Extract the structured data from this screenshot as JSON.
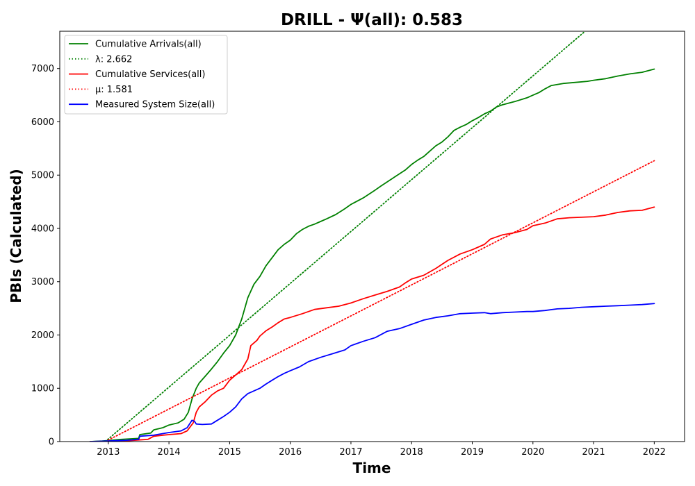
{
  "chart_data": {
    "type": "line",
    "title": "DRILL -  Ψ(all): 0.583",
    "xlabel": "Time",
    "ylabel": "PBIs (Calculated)",
    "xlim": [
      2012.2,
      2022.5
    ],
    "ylim": [
      0,
      7700
    ],
    "x_ticks": [
      2013,
      2014,
      2015,
      2016,
      2017,
      2018,
      2019,
      2020,
      2021,
      2022
    ],
    "y_ticks": [
      0,
      1000,
      2000,
      3000,
      4000,
      5000,
      6000,
      7000
    ],
    "grid": false,
    "legend_position": "top-left",
    "series": [
      {
        "name": "Cumulative Arrivals(all)",
        "color": "#008000",
        "style": "solid",
        "x": [
          2012.7,
          2012.9,
          2013.0,
          2013.2,
          2013.5,
          2013.52,
          2013.7,
          2013.75,
          2013.9,
          2014.0,
          2014.15,
          2014.25,
          2014.32,
          2014.38,
          2014.45,
          2014.5,
          2014.6,
          2014.7,
          2014.8,
          2014.9,
          2015.0,
          2015.1,
          2015.2,
          2015.3,
          2015.4,
          2015.5,
          2015.6,
          2015.7,
          2015.8,
          2015.9,
          2016.0,
          2016.1,
          2016.2,
          2016.3,
          2016.4,
          2016.5,
          2016.6,
          2016.75,
          2016.9,
          2017.0,
          2017.2,
          2017.4,
          2017.5,
          2017.7,
          2017.9,
          2018.0,
          2018.1,
          2018.2,
          2018.3,
          2018.4,
          2018.5,
          2018.6,
          2018.7,
          2018.8,
          2018.9,
          2019.0,
          2019.1,
          2019.2,
          2019.3,
          2019.4,
          2019.5,
          2019.7,
          2019.9,
          2020.0,
          2020.1,
          2020.2,
          2020.3,
          2020.4,
          2020.5,
          2020.7,
          2020.9,
          2021.0,
          2021.2,
          2021.4,
          2021.6,
          2021.8,
          2022.0
        ],
        "values": [
          0,
          10,
          20,
          40,
          60,
          130,
          160,
          220,
          260,
          310,
          350,
          420,
          550,
          800,
          1000,
          1100,
          1230,
          1360,
          1500,
          1660,
          1800,
          2000,
          2300,
          2700,
          2950,
          3100,
          3300,
          3450,
          3600,
          3700,
          3780,
          3900,
          3980,
          4040,
          4080,
          4130,
          4180,
          4260,
          4370,
          4450,
          4570,
          4720,
          4800,
          4950,
          5100,
          5200,
          5280,
          5350,
          5450,
          5550,
          5620,
          5720,
          5840,
          5900,
          5950,
          6020,
          6080,
          6150,
          6200,
          6280,
          6320,
          6380,
          6450,
          6500,
          6550,
          6620,
          6680,
          6700,
          6720,
          6740,
          6760,
          6780,
          6810,
          6860,
          6900,
          6930,
          6990
        ]
      },
      {
        "name": "λ: 2.662",
        "color": "#008000",
        "style": "dotted",
        "x": [
          2012.95,
          2020.86
        ],
        "values": [
          0,
          7700
        ]
      },
      {
        "name": "Cumulative Services(all)",
        "color": "#ff0000",
        "style": "solid",
        "x": [
          2012.7,
          2013.0,
          2013.3,
          2013.5,
          2013.65,
          2013.75,
          2013.9,
          2014.0,
          2014.2,
          2014.3,
          2014.4,
          2014.45,
          2014.5,
          2014.6,
          2014.7,
          2014.8,
          2014.9,
          2015.0,
          2015.1,
          2015.2,
          2015.3,
          2015.35,
          2015.45,
          2015.5,
          2015.6,
          2015.7,
          2015.8,
          2015.9,
          2016.0,
          2016.2,
          2016.4,
          2016.6,
          2016.8,
          2017.0,
          2017.2,
          2017.4,
          2017.6,
          2017.8,
          2017.9,
          2018.0,
          2018.2,
          2018.4,
          2018.6,
          2018.8,
          2019.0,
          2019.2,
          2019.3,
          2019.5,
          2019.7,
          2019.9,
          2020.0,
          2020.2,
          2020.4,
          2020.6,
          2020.8,
          2021.0,
          2021.2,
          2021.4,
          2021.6,
          2021.8,
          2022.0
        ],
        "values": [
          0,
          5,
          15,
          30,
          40,
          100,
          120,
          130,
          150,
          200,
          350,
          550,
          650,
          750,
          870,
          950,
          1000,
          1150,
          1250,
          1350,
          1550,
          1800,
          1900,
          1980,
          2080,
          2150,
          2230,
          2300,
          2330,
          2400,
          2480,
          2510,
          2540,
          2600,
          2680,
          2750,
          2820,
          2900,
          2980,
          3050,
          3120,
          3250,
          3400,
          3520,
          3600,
          3700,
          3800,
          3880,
          3920,
          3980,
          4050,
          4100,
          4180,
          4200,
          4210,
          4220,
          4250,
          4300,
          4330,
          4340,
          4400
        ]
      },
      {
        "name": "μ: 1.581",
        "color": "#ff0000",
        "style": "dotted",
        "x": [
          2012.95,
          2022.0
        ],
        "values": [
          0,
          5270
        ]
      },
      {
        "name": "Measured System Size(all)",
        "color": "#0000ff",
        "style": "solid",
        "x": [
          2012.7,
          2013.0,
          2013.3,
          2013.5,
          2013.52,
          2013.75,
          2014.0,
          2014.2,
          2014.3,
          2014.38,
          2014.42,
          2014.45,
          2014.55,
          2014.7,
          2014.8,
          2014.9,
          2015.0,
          2015.1,
          2015.2,
          2015.3,
          2015.4,
          2015.5,
          2015.6,
          2015.7,
          2015.8,
          2015.9,
          2016.0,
          2016.15,
          2016.3,
          2016.5,
          2016.7,
          2016.9,
          2017.0,
          2017.2,
          2017.4,
          2017.6,
          2017.8,
          2018.0,
          2018.2,
          2018.4,
          2018.6,
          2018.8,
          2019.0,
          2019.2,
          2019.3,
          2019.5,
          2019.7,
          2019.9,
          2020.0,
          2020.2,
          2020.4,
          2020.6,
          2020.8,
          2021.0,
          2021.2,
          2021.4,
          2021.6,
          2021.8,
          2022.0
        ],
        "values": [
          0,
          10,
          25,
          40,
          100,
          120,
          170,
          200,
          260,
          400,
          380,
          330,
          320,
          330,
          400,
          470,
          550,
          650,
          800,
          900,
          950,
          1000,
          1080,
          1150,
          1220,
          1280,
          1330,
          1400,
          1500,
          1580,
          1650,
          1720,
          1800,
          1880,
          1950,
          2070,
          2120,
          2200,
          2280,
          2330,
          2360,
          2400,
          2410,
          2420,
          2400,
          2420,
          2430,
          2440,
          2440,
          2460,
          2490,
          2500,
          2520,
          2530,
          2540,
          2550,
          2560,
          2570,
          2590
        ]
      }
    ]
  }
}
